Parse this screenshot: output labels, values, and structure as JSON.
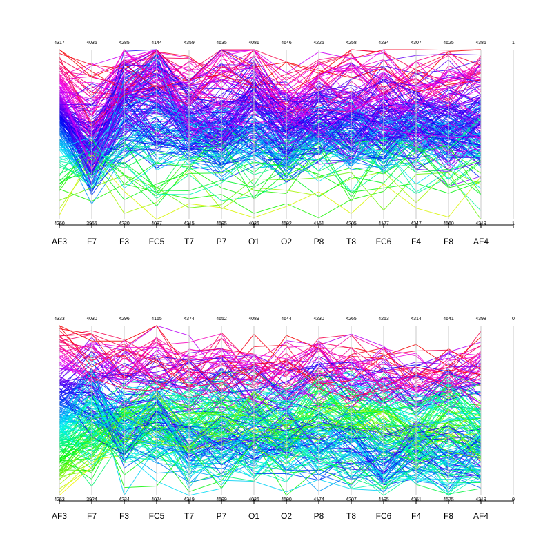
{
  "chart_data": [
    {
      "type": "parallel-coordinates",
      "axes": [
        "AF3",
        "F7",
        "F3",
        "FC5",
        "T7",
        "P7",
        "O1",
        "O2",
        "P8",
        "T8",
        "FC6",
        "F4",
        "F8",
        "AF4",
        ""
      ],
      "max": [
        "4317",
        "4035",
        "4285",
        "4144",
        "4359",
        "4635",
        "4081",
        "4646",
        "4225",
        "4258",
        "4234",
        "4307",
        "4625",
        "4386",
        "1"
      ],
      "min": [
        "4250",
        "3955",
        "4230",
        "4087",
        "4315",
        "4595",
        "4036",
        "4592",
        "4161",
        "4205",
        "4177",
        "4247",
        "4560",
        "4319",
        "1"
      ],
      "profiles": [
        {
          "weight": 70,
          "values": [
            0.52,
            0.32,
            0.57,
            0.52,
            0.5,
            0.47,
            0.5,
            0.44,
            0.54,
            0.52,
            0.48,
            0.52,
            0.56,
            0.54,
            0.5
          ]
        },
        {
          "weight": 35,
          "values": [
            0.68,
            0.44,
            0.82,
            0.9,
            0.6,
            0.55,
            0.72,
            0.56,
            0.55,
            0.53,
            0.62,
            0.55,
            0.45,
            0.5,
            0.5
          ]
        },
        {
          "weight": 35,
          "values": [
            0.82,
            0.68,
            0.84,
            0.88,
            0.8,
            0.86,
            0.85,
            0.74,
            0.78,
            0.8,
            0.82,
            0.8,
            0.8,
            0.84,
            0.5
          ]
        },
        {
          "weight": 12,
          "values": [
            0.22,
            0.35,
            0.28,
            0.2,
            0.25,
            0.3,
            0.24,
            0.28,
            0.25,
            0.22,
            0.3,
            0.28,
            0.25,
            0.22,
            0.5
          ]
        }
      ],
      "series_count": 200,
      "axis_labels_visible": true
    },
    {
      "type": "parallel-coordinates",
      "axes": [
        "AF3",
        "F7",
        "F3",
        "FC5",
        "T7",
        "P7",
        "O1",
        "O2",
        "P8",
        "T8",
        "FC6",
        "F4",
        "F8",
        "AF4",
        ""
      ],
      "max": [
        "4333",
        "4030",
        "4296",
        "4165",
        "4374",
        "4652",
        "4089",
        "4644",
        "4230",
        "4265",
        "4253",
        "4314",
        "4641",
        "4398",
        "0"
      ],
      "min": [
        "4253",
        "3924",
        "4234",
        "4074",
        "4319",
        "4599",
        "4036",
        "4590",
        "4174",
        "4207",
        "4195",
        "4251",
        "4575",
        "4319",
        "0"
      ],
      "profiles": [
        {
          "weight": 60,
          "values": [
            0.24,
            0.3,
            0.45,
            0.48,
            0.45,
            0.48,
            0.48,
            0.42,
            0.55,
            0.5,
            0.48,
            0.38,
            0.48,
            0.42,
            0.5
          ]
        },
        {
          "weight": 45,
          "values": [
            0.48,
            0.5,
            0.38,
            0.4,
            0.28,
            0.34,
            0.28,
            0.32,
            0.28,
            0.28,
            0.2,
            0.24,
            0.22,
            0.24,
            0.5
          ]
        },
        {
          "weight": 40,
          "values": [
            0.8,
            0.78,
            0.74,
            0.76,
            0.7,
            0.74,
            0.7,
            0.7,
            0.74,
            0.72,
            0.7,
            0.68,
            0.7,
            0.72,
            0.5
          ]
        },
        {
          "weight": 15,
          "values": [
            0.4,
            0.62,
            0.22,
            0.3,
            0.22,
            0.2,
            0.28,
            0.2,
            0.24,
            0.22,
            0.2,
            0.26,
            0.24,
            0.22,
            0.5
          ]
        }
      ],
      "series_count": 200,
      "axis_labels_visible": true
    }
  ]
}
